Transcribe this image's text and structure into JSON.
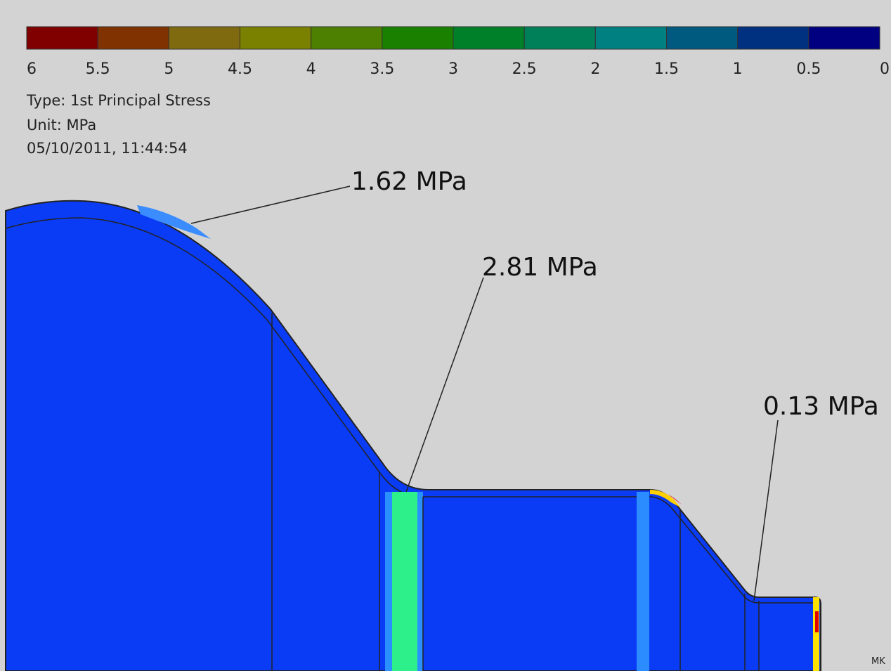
{
  "legend": {
    "colors": [
      "#800000",
      "#803300",
      "#806a10",
      "#7a8000",
      "#4d8000",
      "#1a8000",
      "#008028",
      "#008058",
      "#008080",
      "#005a80",
      "#003080",
      "#000080"
    ],
    "labels": [
      "6",
      "5.5",
      "5",
      "4.5",
      "4",
      "3.5",
      "3",
      "2.5",
      "2",
      "1.5",
      "1",
      "0.5",
      "0"
    ]
  },
  "info": {
    "type": "Type: 1st Principal Stress",
    "unit": "Unit: MPa",
    "date": "05/10/2011, 11:44:54"
  },
  "annotations": [
    {
      "label": "1.62 MPa"
    },
    {
      "label": "2.81 MPa"
    },
    {
      "label": "0.13 MPa"
    }
  ],
  "corner_label": "MK"
}
